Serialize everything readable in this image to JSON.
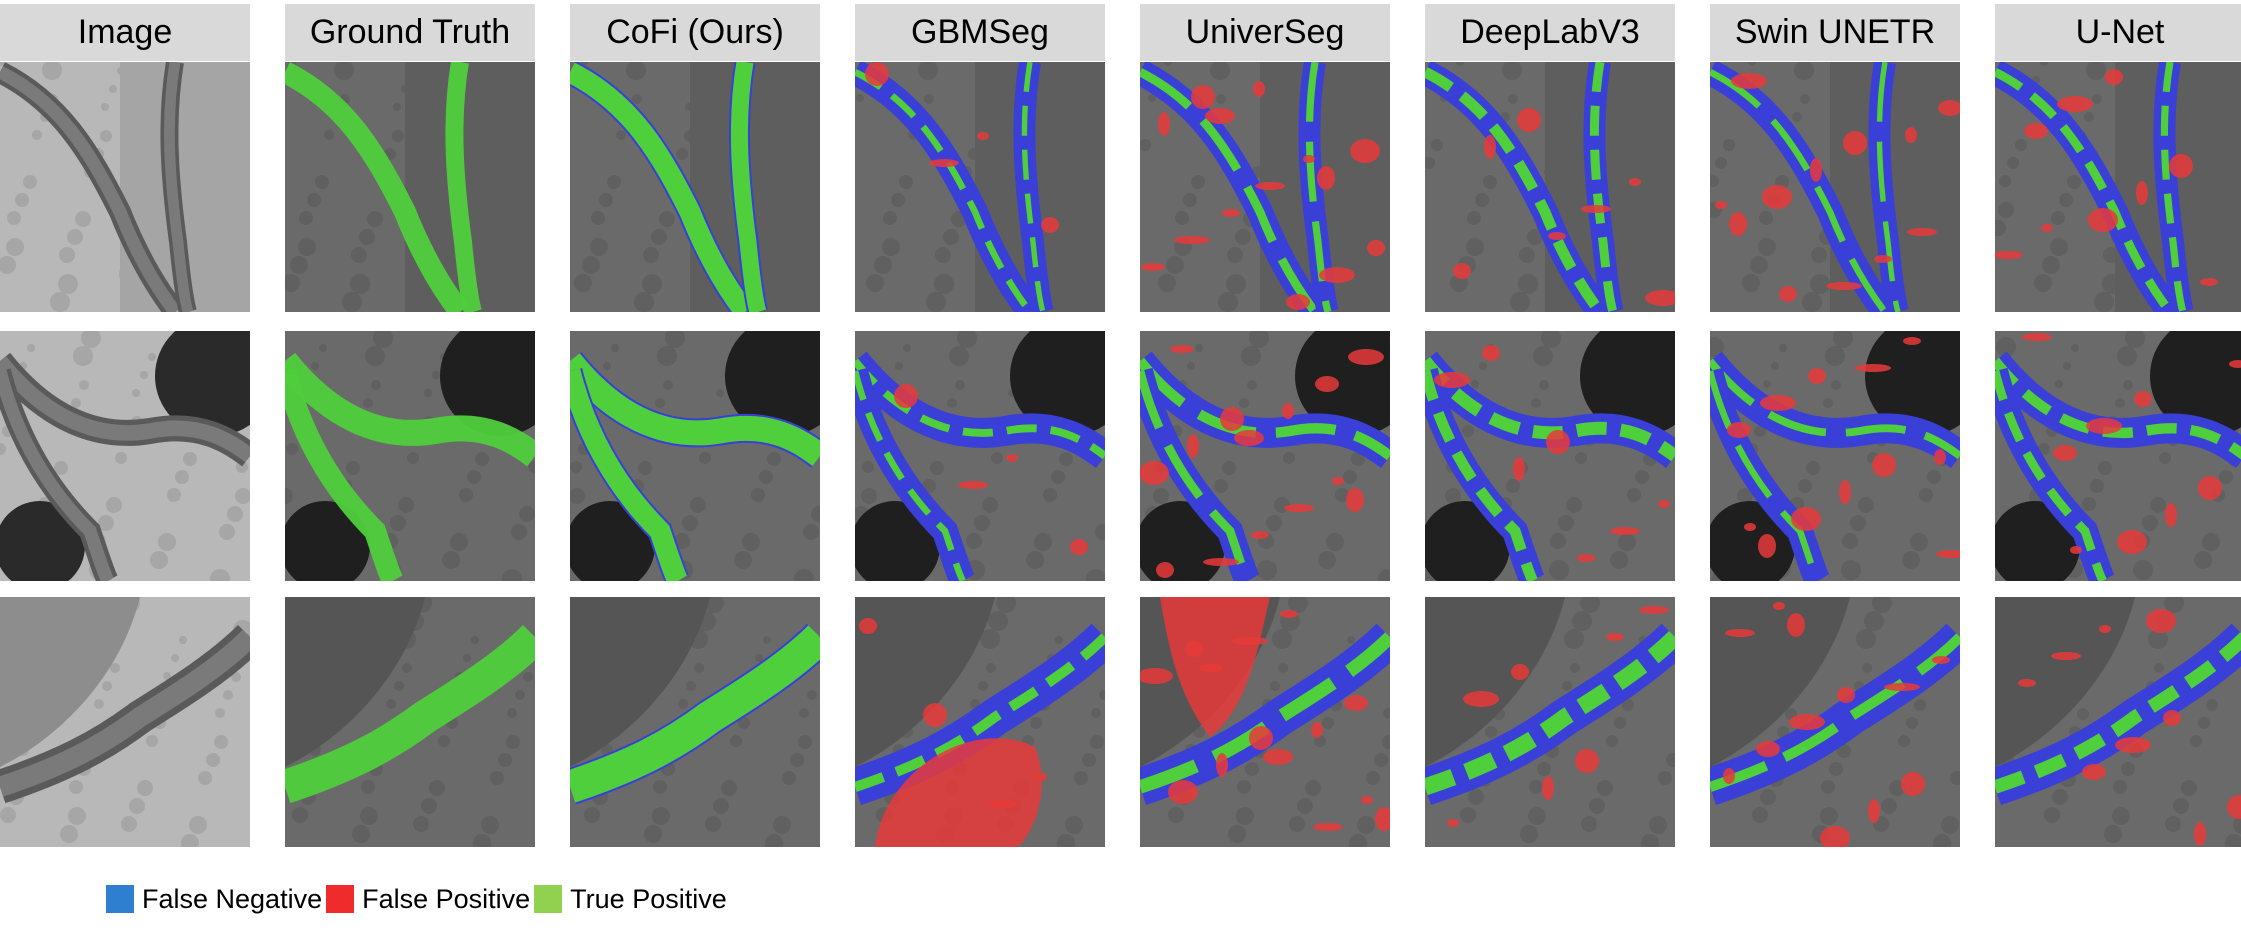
{
  "columns": [
    "Image",
    "Ground Truth",
    "CoFi (Ours)",
    "GBMSeg",
    "UniverSeg",
    "DeepLabV3",
    "Swin UNETR",
    "U-Net"
  ],
  "rows": 3,
  "legend": [
    {
      "label": "False Negative",
      "color": "#2f7fd0"
    },
    {
      "label": "False Positive",
      "color": "#f02b2b"
    },
    {
      "label": "True Positive",
      "color": "#92d050"
    }
  ],
  "overlay_colors": {
    "false_negative": "#3a3fd8",
    "false_positive": "#e83a3a",
    "true_positive": "#4fcf3c"
  }
}
